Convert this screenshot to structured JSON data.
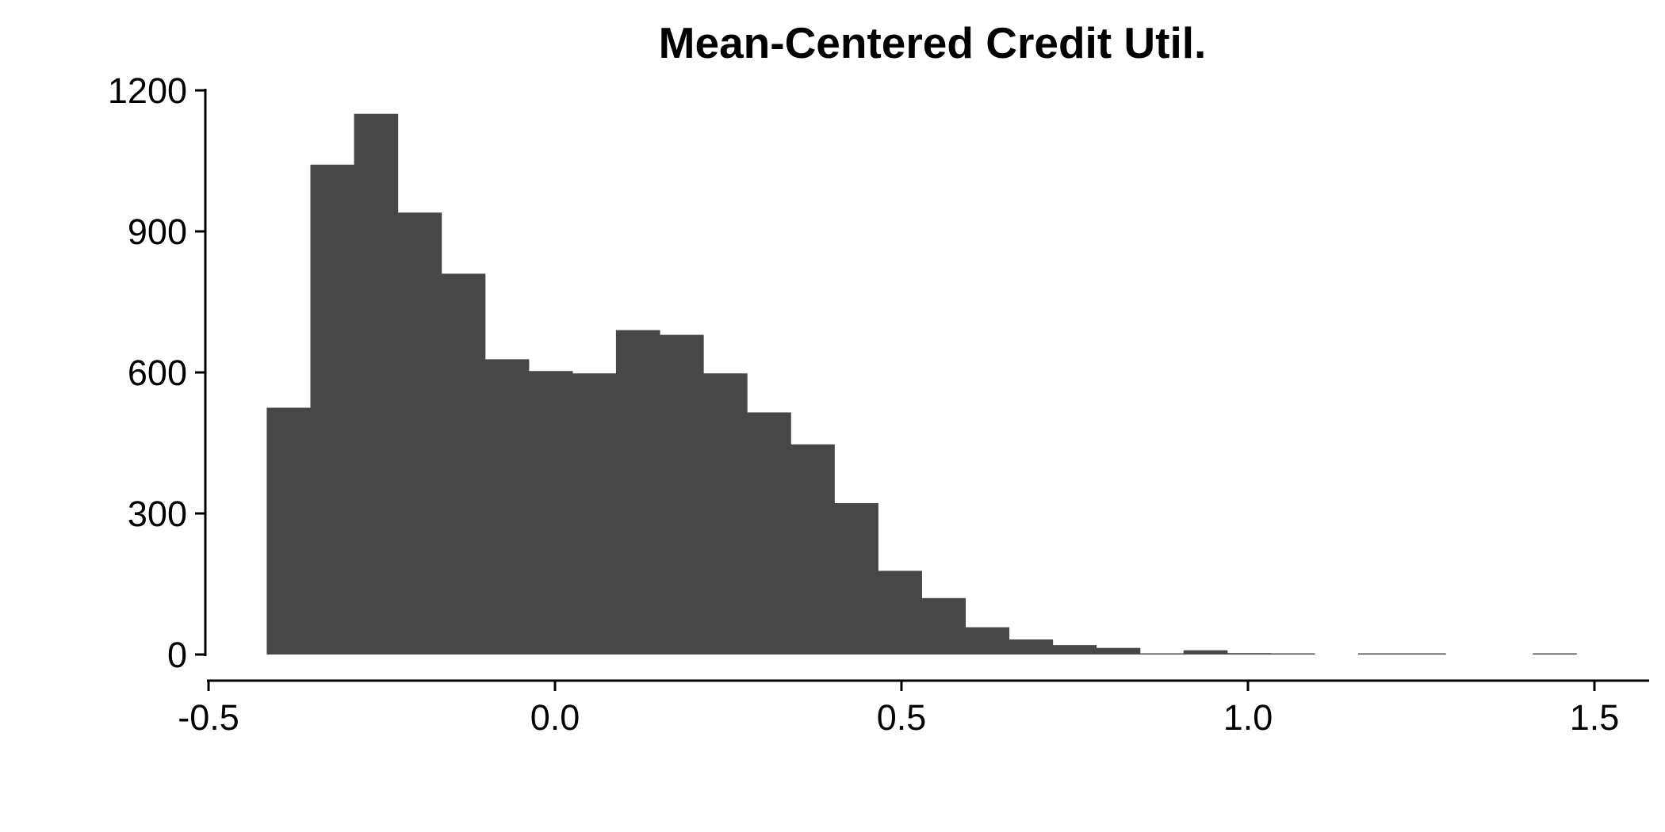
{
  "chart_data": {
    "type": "bar",
    "title": "Mean-Centered Credit Util.",
    "xlabel": "",
    "ylabel": "",
    "bin_width": 0.063,
    "bins": [
      {
        "x0": -0.416,
        "x1": -0.353,
        "count": 525
      },
      {
        "x0": -0.353,
        "x1": -0.29,
        "count": 1042
      },
      {
        "x0": -0.29,
        "x1": -0.227,
        "count": 1150
      },
      {
        "x0": -0.227,
        "x1": -0.164,
        "count": 940
      },
      {
        "x0": -0.164,
        "x1": -0.101,
        "count": 810
      },
      {
        "x0": -0.101,
        "x1": -0.038,
        "count": 628
      },
      {
        "x0": -0.038,
        "x1": 0.025,
        "count": 603
      },
      {
        "x0": 0.025,
        "x1": 0.088,
        "count": 598
      },
      {
        "x0": 0.088,
        "x1": 0.151,
        "count": 690
      },
      {
        "x0": 0.151,
        "x1": 0.214,
        "count": 680
      },
      {
        "x0": 0.214,
        "x1": 0.277,
        "count": 598
      },
      {
        "x0": 0.277,
        "x1": 0.34,
        "count": 515
      },
      {
        "x0": 0.34,
        "x1": 0.403,
        "count": 447
      },
      {
        "x0": 0.403,
        "x1": 0.466,
        "count": 322
      },
      {
        "x0": 0.466,
        "x1": 0.529,
        "count": 178
      },
      {
        "x0": 0.529,
        "x1": 0.592,
        "count": 120
      },
      {
        "x0": 0.592,
        "x1": 0.655,
        "count": 58
      },
      {
        "x0": 0.655,
        "x1": 0.718,
        "count": 32
      },
      {
        "x0": 0.718,
        "x1": 0.781,
        "count": 20
      },
      {
        "x0": 0.781,
        "x1": 0.844,
        "count": 14
      },
      {
        "x0": 0.844,
        "x1": 0.907,
        "count": 2
      },
      {
        "x0": 0.907,
        "x1": 0.97,
        "count": 9
      },
      {
        "x0": 0.97,
        "x1": 1.033,
        "count": 3
      },
      {
        "x0": 1.033,
        "x1": 1.096,
        "count": 2
      },
      {
        "x0": 1.096,
        "x1": 1.159,
        "count": 0
      },
      {
        "x0": 1.159,
        "x1": 1.222,
        "count": 2
      },
      {
        "x0": 1.222,
        "x1": 1.285,
        "count": 1
      },
      {
        "x0": 1.285,
        "x1": 1.348,
        "count": 0
      },
      {
        "x0": 1.348,
        "x1": 1.411,
        "count": 0
      },
      {
        "x0": 1.411,
        "x1": 1.474,
        "count": 1
      }
    ],
    "xlim": [
      -0.5,
      1.58
    ],
    "ylim": [
      0,
      1200
    ],
    "xticks": [
      -0.5,
      0.0,
      0.5,
      1.0,
      1.5
    ],
    "xtick_labels": [
      "-0.5",
      "0.0",
      "0.5",
      "1.0",
      "1.5"
    ],
    "yticks": [
      0,
      300,
      600,
      900,
      1200
    ],
    "ytick_labels": [
      "0",
      "300",
      "600",
      "900",
      "1200"
    ],
    "bar_color": "#474747",
    "grid": false,
    "legend": "none"
  }
}
